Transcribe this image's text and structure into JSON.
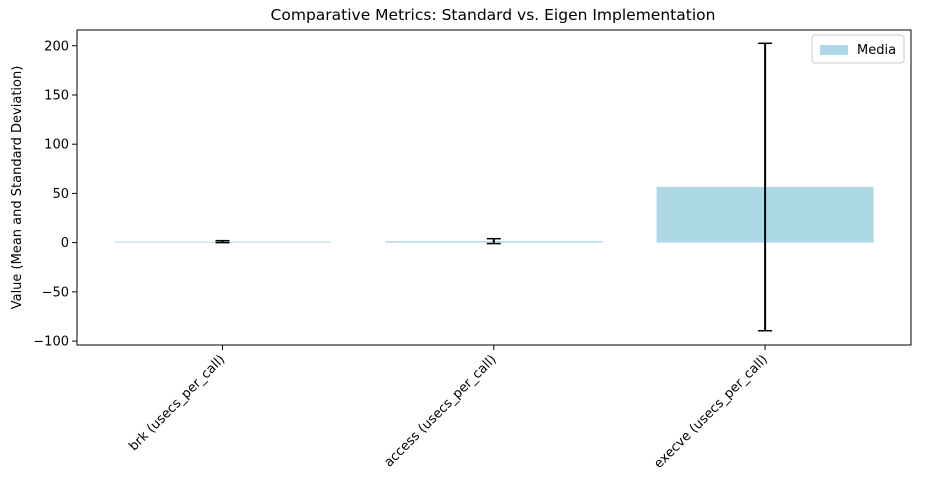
{
  "chart_data": {
    "type": "bar",
    "title": "Comparative Metrics: Standard vs. Eigen Implementation",
    "xlabel": "",
    "ylabel": "Value (Mean and Standard Deviation)",
    "categories": [
      "brk (usecs_per_call)",
      "access (usecs_per_call)",
      "execve (usecs_per_call)"
    ],
    "series": [
      {
        "name": "Media",
        "color": "#add8e6",
        "values": [
          1.0,
          1.5,
          56.5
        ],
        "error": [
          1.0,
          2.5,
          146.0
        ]
      }
    ],
    "ylim": [
      -104,
      216
    ],
    "yticks": [
      -100,
      -50,
      0,
      50,
      100,
      150,
      200
    ],
    "grid": false,
    "legend_position": "top-right"
  }
}
